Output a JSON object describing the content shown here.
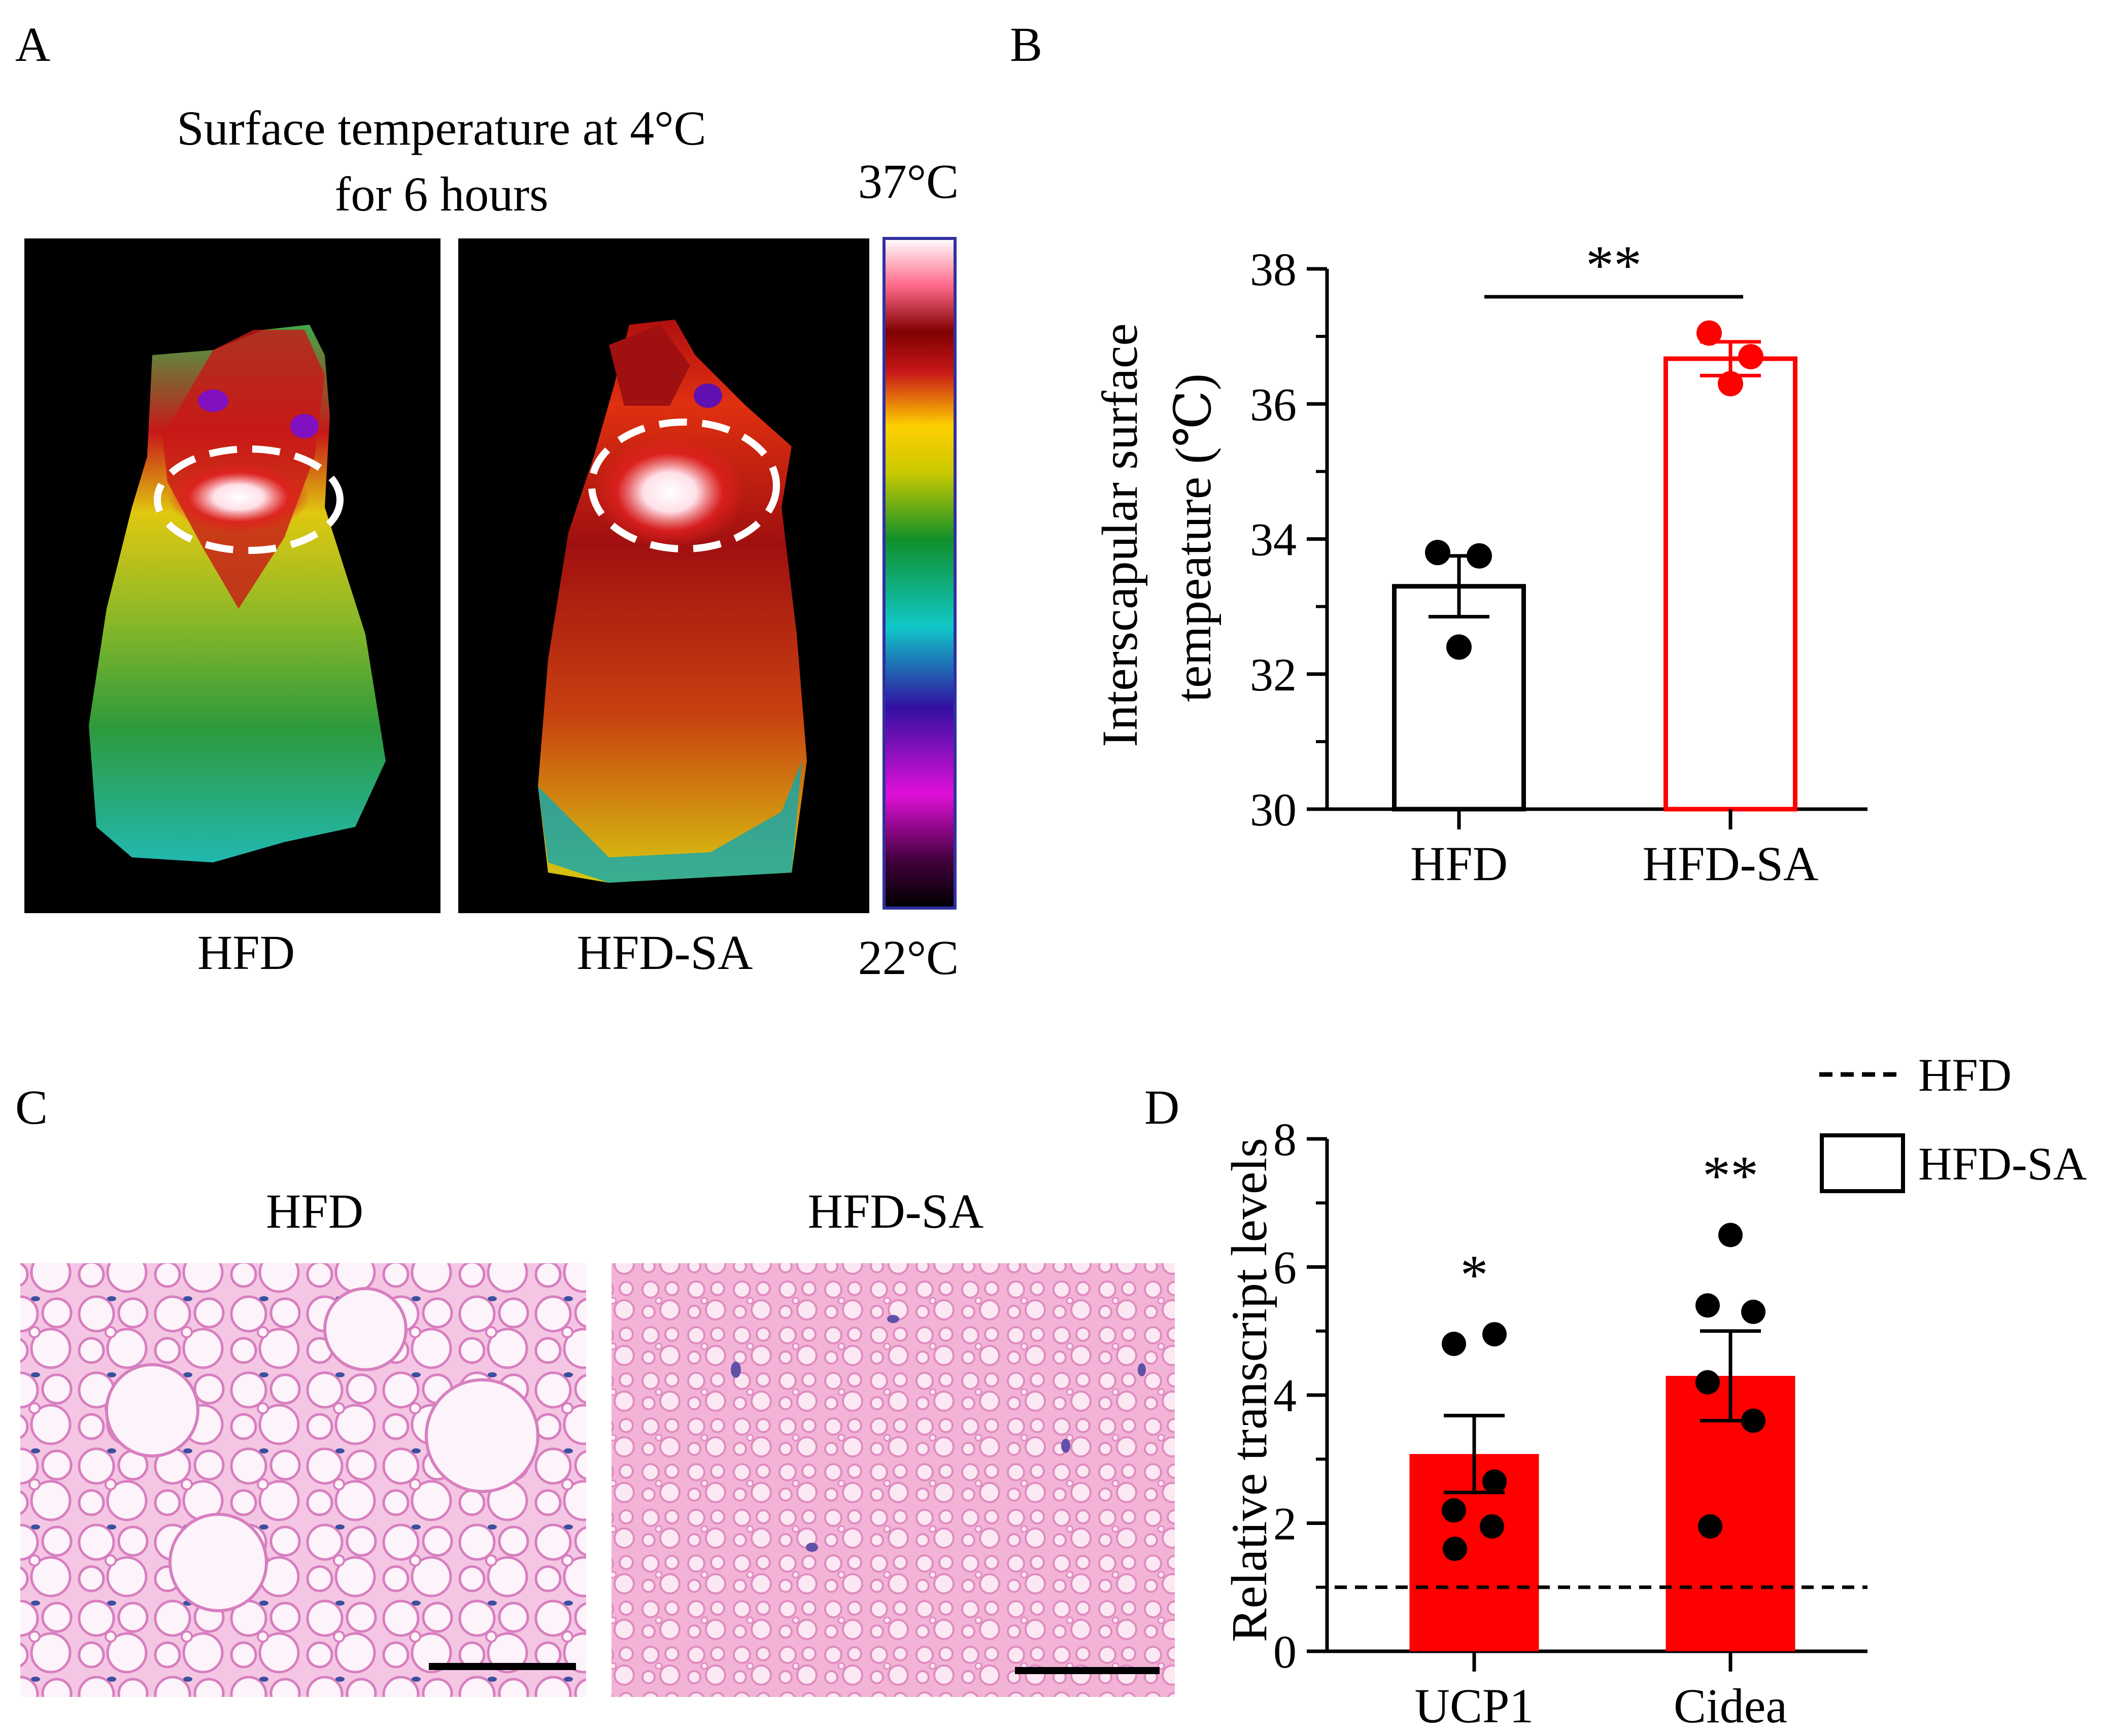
{
  "panels": {
    "a": {
      "letter": "A",
      "title_line1": "Surface temperature at 4°C",
      "title_line2": "for 6 hours",
      "label_left": "HFD",
      "label_right": "HFD-SA",
      "scale_max": "37°C",
      "scale_min": "22°C"
    },
    "b": {
      "letter": "B"
    },
    "c": {
      "letter": "C",
      "label_left": "HFD",
      "label_right": "HFD-SA"
    },
    "d": {
      "letter": "D"
    }
  },
  "colors": {
    "red": "#ff0000",
    "black": "#000000",
    "he_pink": "#f2b8dd",
    "he_nucleus": "#3a4f9e"
  },
  "chart_data": [
    {
      "id": "B",
      "type": "bar",
      "title": "",
      "categories": [
        "HFD",
        "HFD-SA"
      ],
      "values": [
        33.3,
        36.67
      ],
      "errors": [
        0.45,
        0.25
      ],
      "points": [
        [
          33.8,
          33.75,
          32.4
        ],
        [
          37.05,
          36.7,
          36.3
        ]
      ],
      "bar_style": [
        "outline-black",
        "outline-red"
      ],
      "ylabel_line1": "Interscapular surface",
      "ylabel_line2": "tempeature (℃)",
      "xlabel": "",
      "ylim": [
        30,
        38
      ],
      "yticks": [
        "30",
        "32",
        "34",
        "36",
        "38"
      ],
      "significance": {
        "label": "**",
        "between": [
          "HFD",
          "HFD-SA"
        ]
      }
    },
    {
      "id": "D",
      "type": "bar",
      "title": "",
      "categories": [
        "UCP1",
        "Cidea"
      ],
      "series": [
        {
          "name": "HFD-SA",
          "values": [
            3.08,
            4.3
          ],
          "errors": [
            0.6,
            0.7
          ]
        }
      ],
      "points": [
        [
          4.95,
          4.8,
          2.65,
          2.2,
          1.95,
          1.6
        ],
        [
          6.5,
          5.4,
          5.3,
          4.2,
          3.6,
          1.95
        ]
      ],
      "reference_line": {
        "name": "HFD",
        "value": 1.0,
        "style": "dashed"
      },
      "ylabel": "Relative transcript levels",
      "xlabel": "",
      "ylim": [
        0,
        8
      ],
      "yticks": [
        "0",
        "2",
        "4",
        "6",
        "8"
      ],
      "significance": [
        "*",
        "**"
      ],
      "legend": [
        {
          "label": "HFD",
          "style": "dashed-line"
        },
        {
          "label": "HFD-SA",
          "style": "open-box"
        }
      ],
      "legend_position": "top-right"
    }
  ]
}
